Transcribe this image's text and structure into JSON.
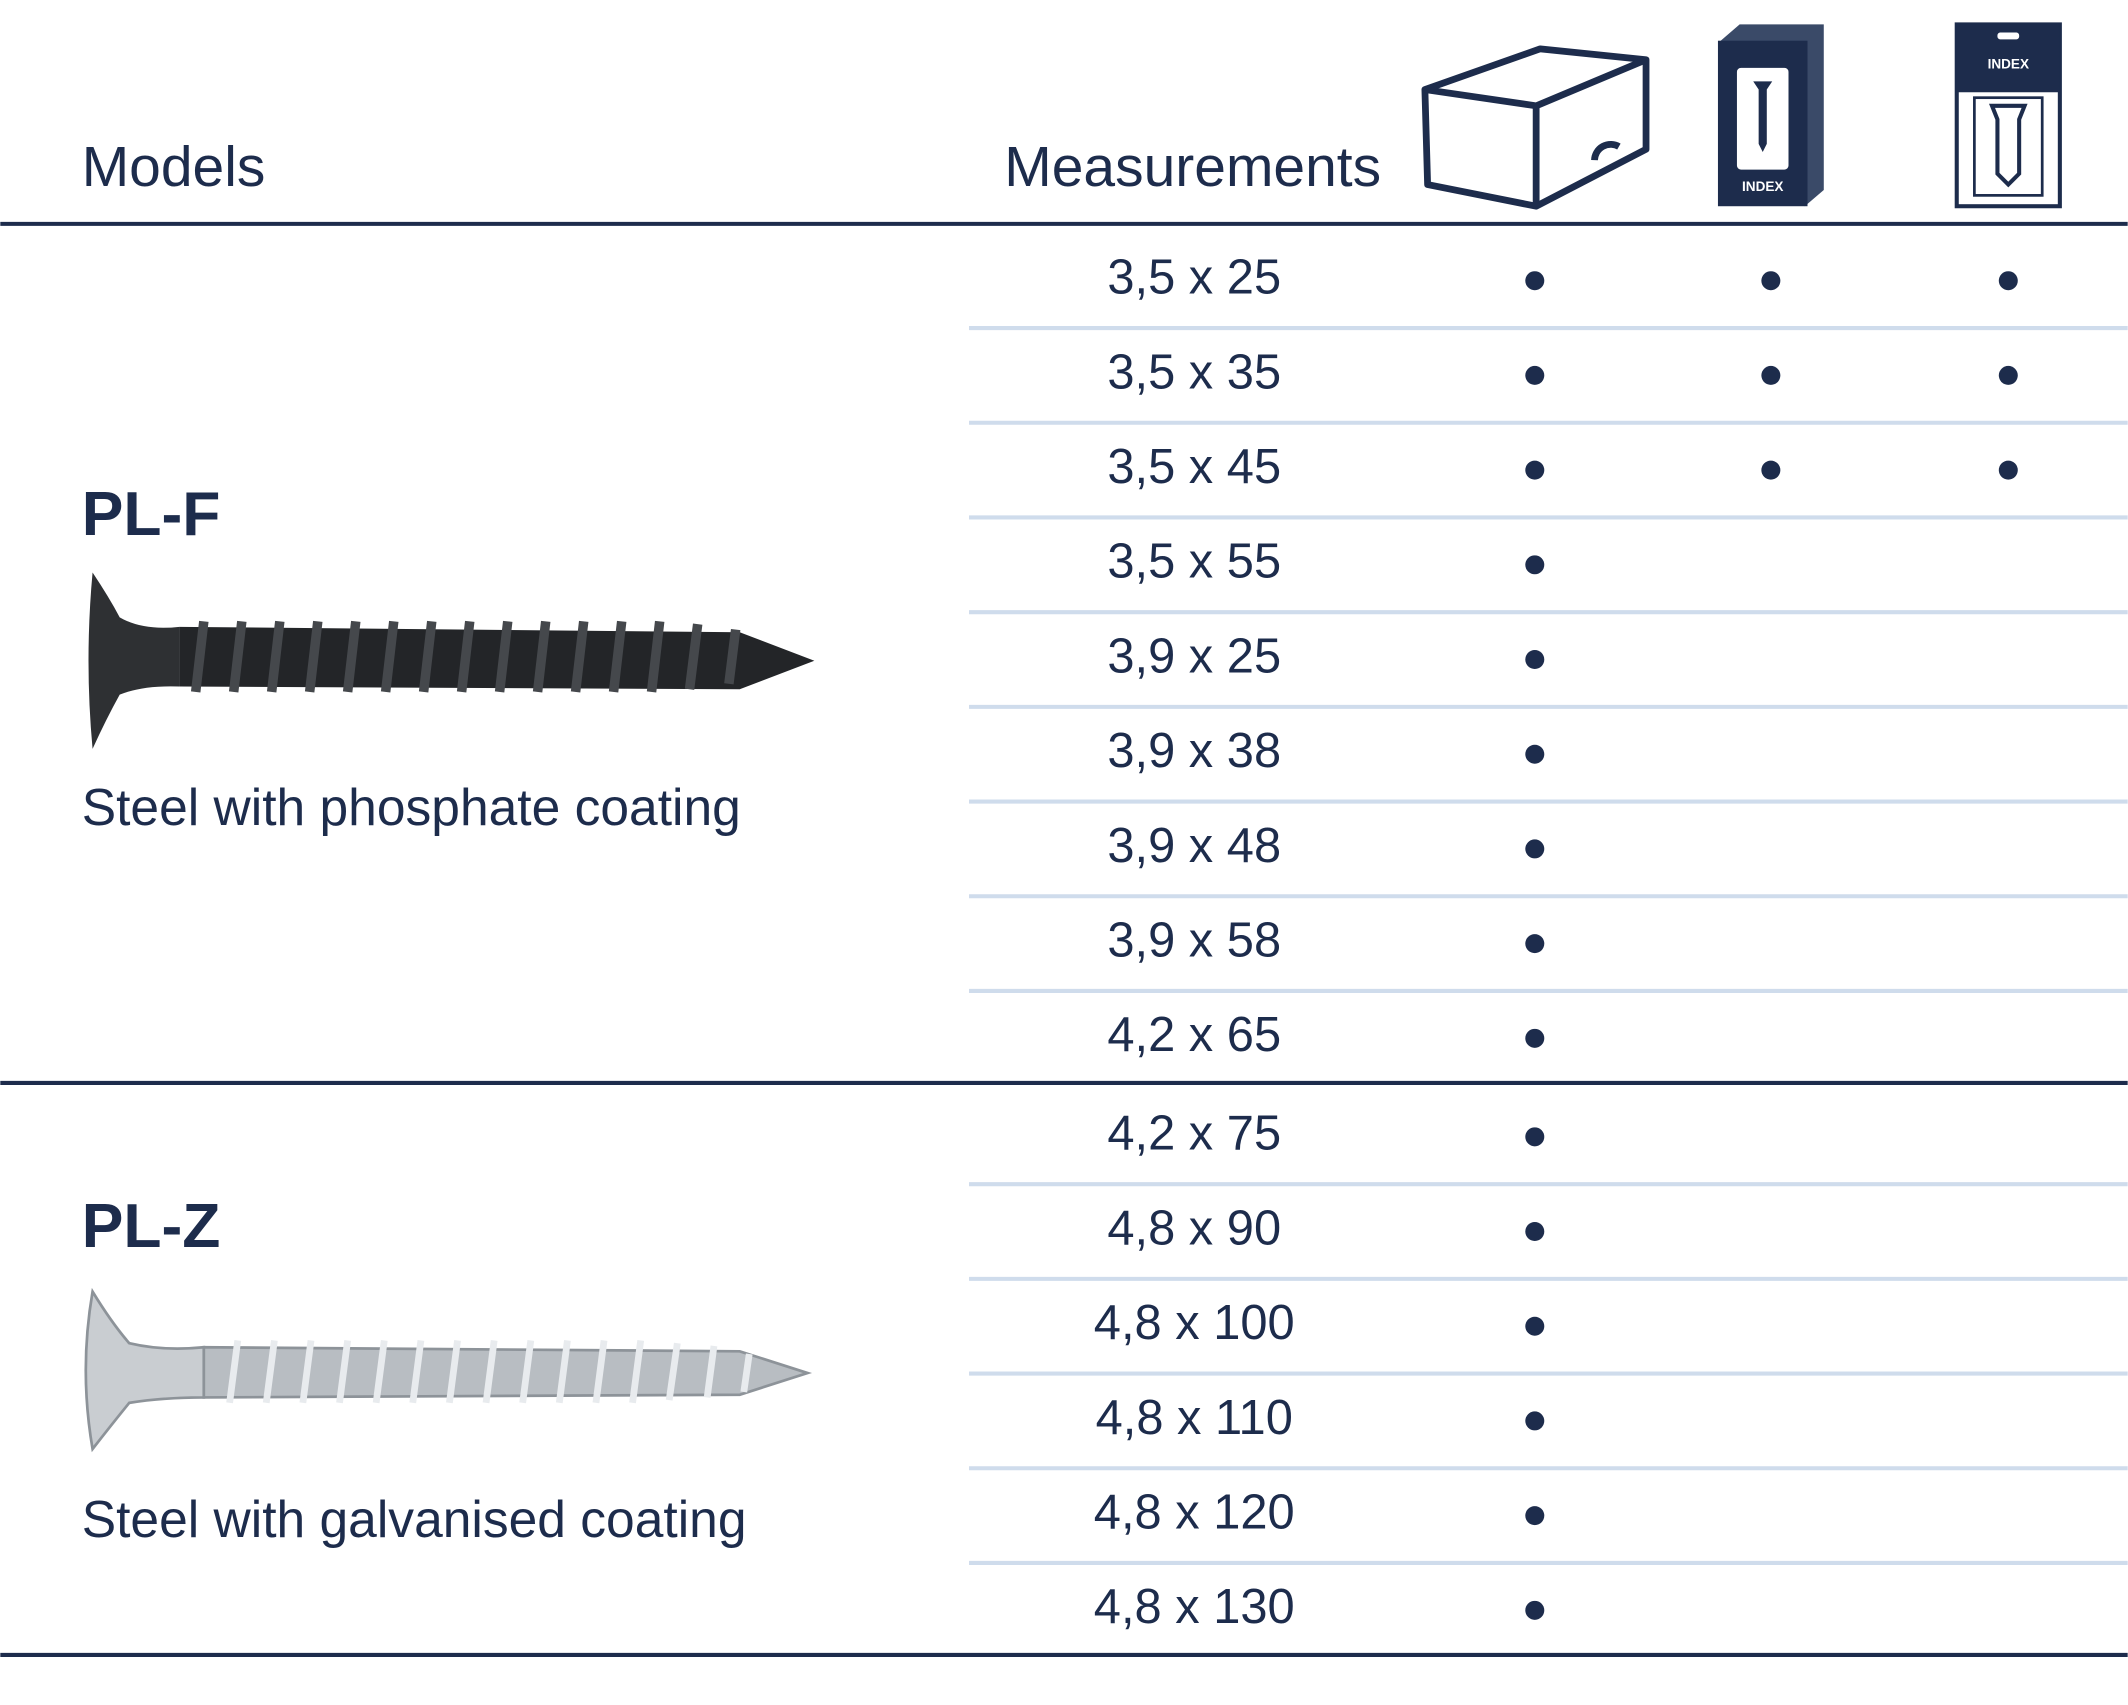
{
  "header": {
    "models": "Models",
    "measurements": "Measurements",
    "brand": "INDEX"
  },
  "groups": [
    {
      "model": "PL-F",
      "description": "Steel with phosphate coating",
      "rows": [
        {
          "measurement": "3,5 x 25",
          "availability": [
            true,
            true,
            true
          ]
        },
        {
          "measurement": "3,5 x 35",
          "availability": [
            true,
            true,
            true
          ]
        },
        {
          "measurement": "3,5 x 45",
          "availability": [
            true,
            true,
            true
          ]
        },
        {
          "measurement": "3,5 x 55",
          "availability": [
            true,
            false,
            false
          ]
        },
        {
          "measurement": "3,9 x 25",
          "availability": [
            true,
            false,
            false
          ]
        },
        {
          "measurement": "3,9 x 38",
          "availability": [
            true,
            false,
            false
          ]
        },
        {
          "measurement": "3,9 x 48",
          "availability": [
            true,
            false,
            false
          ]
        },
        {
          "measurement": "3,9 x 58",
          "availability": [
            true,
            false,
            false
          ]
        },
        {
          "measurement": "4,2 x 65",
          "availability": [
            true,
            false,
            false
          ]
        }
      ]
    },
    {
      "model": "PL-Z",
      "description": "Steel with galvanised coating",
      "rows": [
        {
          "measurement": "4,2 x 75",
          "availability": [
            true,
            false,
            false
          ]
        },
        {
          "measurement": "4,8 x 90",
          "availability": [
            true,
            false,
            false
          ]
        },
        {
          "measurement": "4,8 x 100",
          "availability": [
            true,
            false,
            false
          ]
        },
        {
          "measurement": "4,8 x 110",
          "availability": [
            true,
            false,
            false
          ]
        },
        {
          "measurement": "4,8 x 120",
          "availability": [
            true,
            false,
            false
          ]
        },
        {
          "measurement": "4,8 x 130",
          "availability": [
            true,
            false,
            false
          ]
        }
      ]
    }
  ]
}
